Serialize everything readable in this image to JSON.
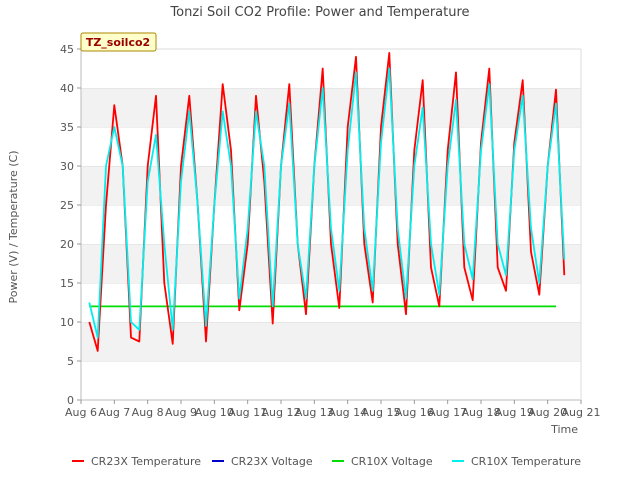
{
  "chart_data": {
    "type": "line",
    "title": "Tonzi Soil CO2 Profile: Power and Temperature",
    "site_label": "TZ_soilco2",
    "xlabel": "Time",
    "ylabel": "Power (V) / Temperature (C)",
    "x_tick_labels": [
      "Aug 6",
      "Aug 7",
      "Aug 8",
      "Aug 9",
      "Aug 10",
      "Aug 11",
      "Aug 12",
      "Aug 13",
      "Aug 14",
      "Aug 15",
      "Aug 16",
      "Aug 17",
      "Aug 18",
      "Aug 19",
      "Aug 20",
      "Aug 21"
    ],
    "y_ticks": [
      0,
      5,
      10,
      15,
      20,
      25,
      30,
      35,
      40,
      45
    ],
    "xlim": [
      "Aug 6",
      "Aug 21"
    ],
    "ylim": [
      0,
      45
    ],
    "grid": "horizontal bands",
    "legend_position": "bottom",
    "series": [
      {
        "name": "CR23X Temperature",
        "color": "#ff0000",
        "x": [
          "Aug 6 06:00",
          "Aug 6 12:00",
          "Aug 6 18:00",
          "Aug 7 00:00",
          "Aug 7 06:00",
          "Aug 7 12:00",
          "Aug 7 18:00",
          "Aug 8 00:00",
          "Aug 8 06:00",
          "Aug 8 12:00",
          "Aug 8 18:00",
          "Aug 9 00:00",
          "Aug 9 06:00",
          "Aug 9 12:00",
          "Aug 9 18:00",
          "Aug 10 00:00",
          "Aug 10 06:00",
          "Aug 10 12:00",
          "Aug 10 18:00",
          "Aug 11 00:00",
          "Aug 11 06:00",
          "Aug 11 12:00",
          "Aug 11 18:00",
          "Aug 12 00:00",
          "Aug 12 06:00",
          "Aug 12 12:00",
          "Aug 12 18:00",
          "Aug 13 00:00",
          "Aug 13 06:00",
          "Aug 13 12:00",
          "Aug 13 18:00",
          "Aug 14 00:00",
          "Aug 14 06:00",
          "Aug 14 12:00",
          "Aug 14 18:00",
          "Aug 15 00:00",
          "Aug 15 06:00",
          "Aug 15 12:00",
          "Aug 15 18:00",
          "Aug 16 00:00",
          "Aug 16 06:00",
          "Aug 16 12:00",
          "Aug 16 18:00",
          "Aug 17 00:00",
          "Aug 17 06:00",
          "Aug 17 12:00",
          "Aug 17 18:00",
          "Aug 18 00:00",
          "Aug 18 06:00",
          "Aug 18 12:00",
          "Aug 18 18:00",
          "Aug 19 00:00",
          "Aug 19 06:00",
          "Aug 19 12:00",
          "Aug 19 18:00",
          "Aug 20 00:00",
          "Aug 20 06:00",
          "Aug 20 12:00"
        ],
        "y": [
          10.0,
          6.3,
          25.0,
          37.8,
          30.0,
          8.0,
          7.5,
          30.0,
          39.0,
          15.0,
          7.2,
          30.0,
          39.0,
          25.0,
          7.5,
          25.0,
          40.5,
          32.0,
          11.5,
          20.0,
          39.0,
          28.0,
          9.8,
          30.0,
          40.5,
          20.0,
          11.0,
          30.0,
          42.5,
          20.0,
          11.8,
          35.0,
          44.0,
          20.0,
          12.5,
          35.0,
          44.5,
          20.0,
          11.0,
          32.0,
          41.0,
          17.0,
          12.0,
          32.0,
          42.0,
          17.0,
          12.8,
          33.0,
          42.5,
          17.0,
          14.0,
          33.0,
          41.0,
          19.0,
          13.5,
          30.0,
          39.8,
          16.0
        ]
      },
      {
        "name": "CR23X Voltage",
        "color": "#0000cc",
        "x": [],
        "y": []
      },
      {
        "name": "CR10X Voltage",
        "color": "#00dd00",
        "x": [
          "Aug 6 06:00",
          "Aug 20 06:00"
        ],
        "y": [
          12.0,
          12.0
        ]
      },
      {
        "name": "CR10X Temperature",
        "color": "#00eeee",
        "x": [
          "Aug 6 06:00",
          "Aug 6 12:00",
          "Aug 6 18:00",
          "Aug 7 00:00",
          "Aug 7 06:00",
          "Aug 7 12:00",
          "Aug 7 18:00",
          "Aug 8 00:00",
          "Aug 8 06:00",
          "Aug 8 12:00",
          "Aug 8 18:00",
          "Aug 9 00:00",
          "Aug 9 06:00",
          "Aug 9 12:00",
          "Aug 9 18:00",
          "Aug 10 00:00",
          "Aug 10 06:00",
          "Aug 10 12:00",
          "Aug 10 18:00",
          "Aug 11 00:00",
          "Aug 11 06:00",
          "Aug 11 12:00",
          "Aug 11 18:00",
          "Aug 12 00:00",
          "Aug 12 06:00",
          "Aug 12 12:00",
          "Aug 12 18:00",
          "Aug 13 00:00",
          "Aug 13 06:00",
          "Aug 13 12:00",
          "Aug 13 18:00",
          "Aug 14 00:00",
          "Aug 14 06:00",
          "Aug 14 12:00",
          "Aug 14 18:00",
          "Aug 15 00:00",
          "Aug 15 06:00",
          "Aug 15 12:00",
          "Aug 15 18:00",
          "Aug 16 00:00",
          "Aug 16 06:00",
          "Aug 16 12:00",
          "Aug 16 18:00",
          "Aug 17 00:00",
          "Aug 17 06:00",
          "Aug 17 12:00",
          "Aug 17 18:00",
          "Aug 18 00:00",
          "Aug 18 06:00",
          "Aug 18 12:00",
          "Aug 18 18:00",
          "Aug 19 00:00",
          "Aug 19 06:00",
          "Aug 19 12:00",
          "Aug 19 18:00",
          "Aug 20 00:00",
          "Aug 20 06:00",
          "Aug 20 12:00"
        ],
        "y": [
          12.5,
          8.0,
          30.0,
          35.0,
          30.0,
          10.0,
          9.0,
          28.0,
          34.0,
          20.0,
          9.0,
          28.0,
          37.0,
          25.0,
          9.5,
          25.0,
          37.0,
          30.0,
          13.0,
          22.0,
          37.0,
          30.0,
          12.0,
          30.0,
          38.0,
          20.0,
          13.0,
          30.0,
          40.0,
          22.0,
          14.0,
          32.0,
          42.0,
          22.0,
          14.0,
          33.0,
          42.5,
          22.0,
          13.0,
          30.0,
          37.5,
          20.0,
          13.5,
          30.0,
          38.5,
          20.0,
          15.5,
          32.0,
          40.5,
          20.0,
          16.0,
          32.0,
          39.0,
          22.0,
          15.0,
          30.0,
          38.0,
          18.0
        ]
      }
    ]
  }
}
